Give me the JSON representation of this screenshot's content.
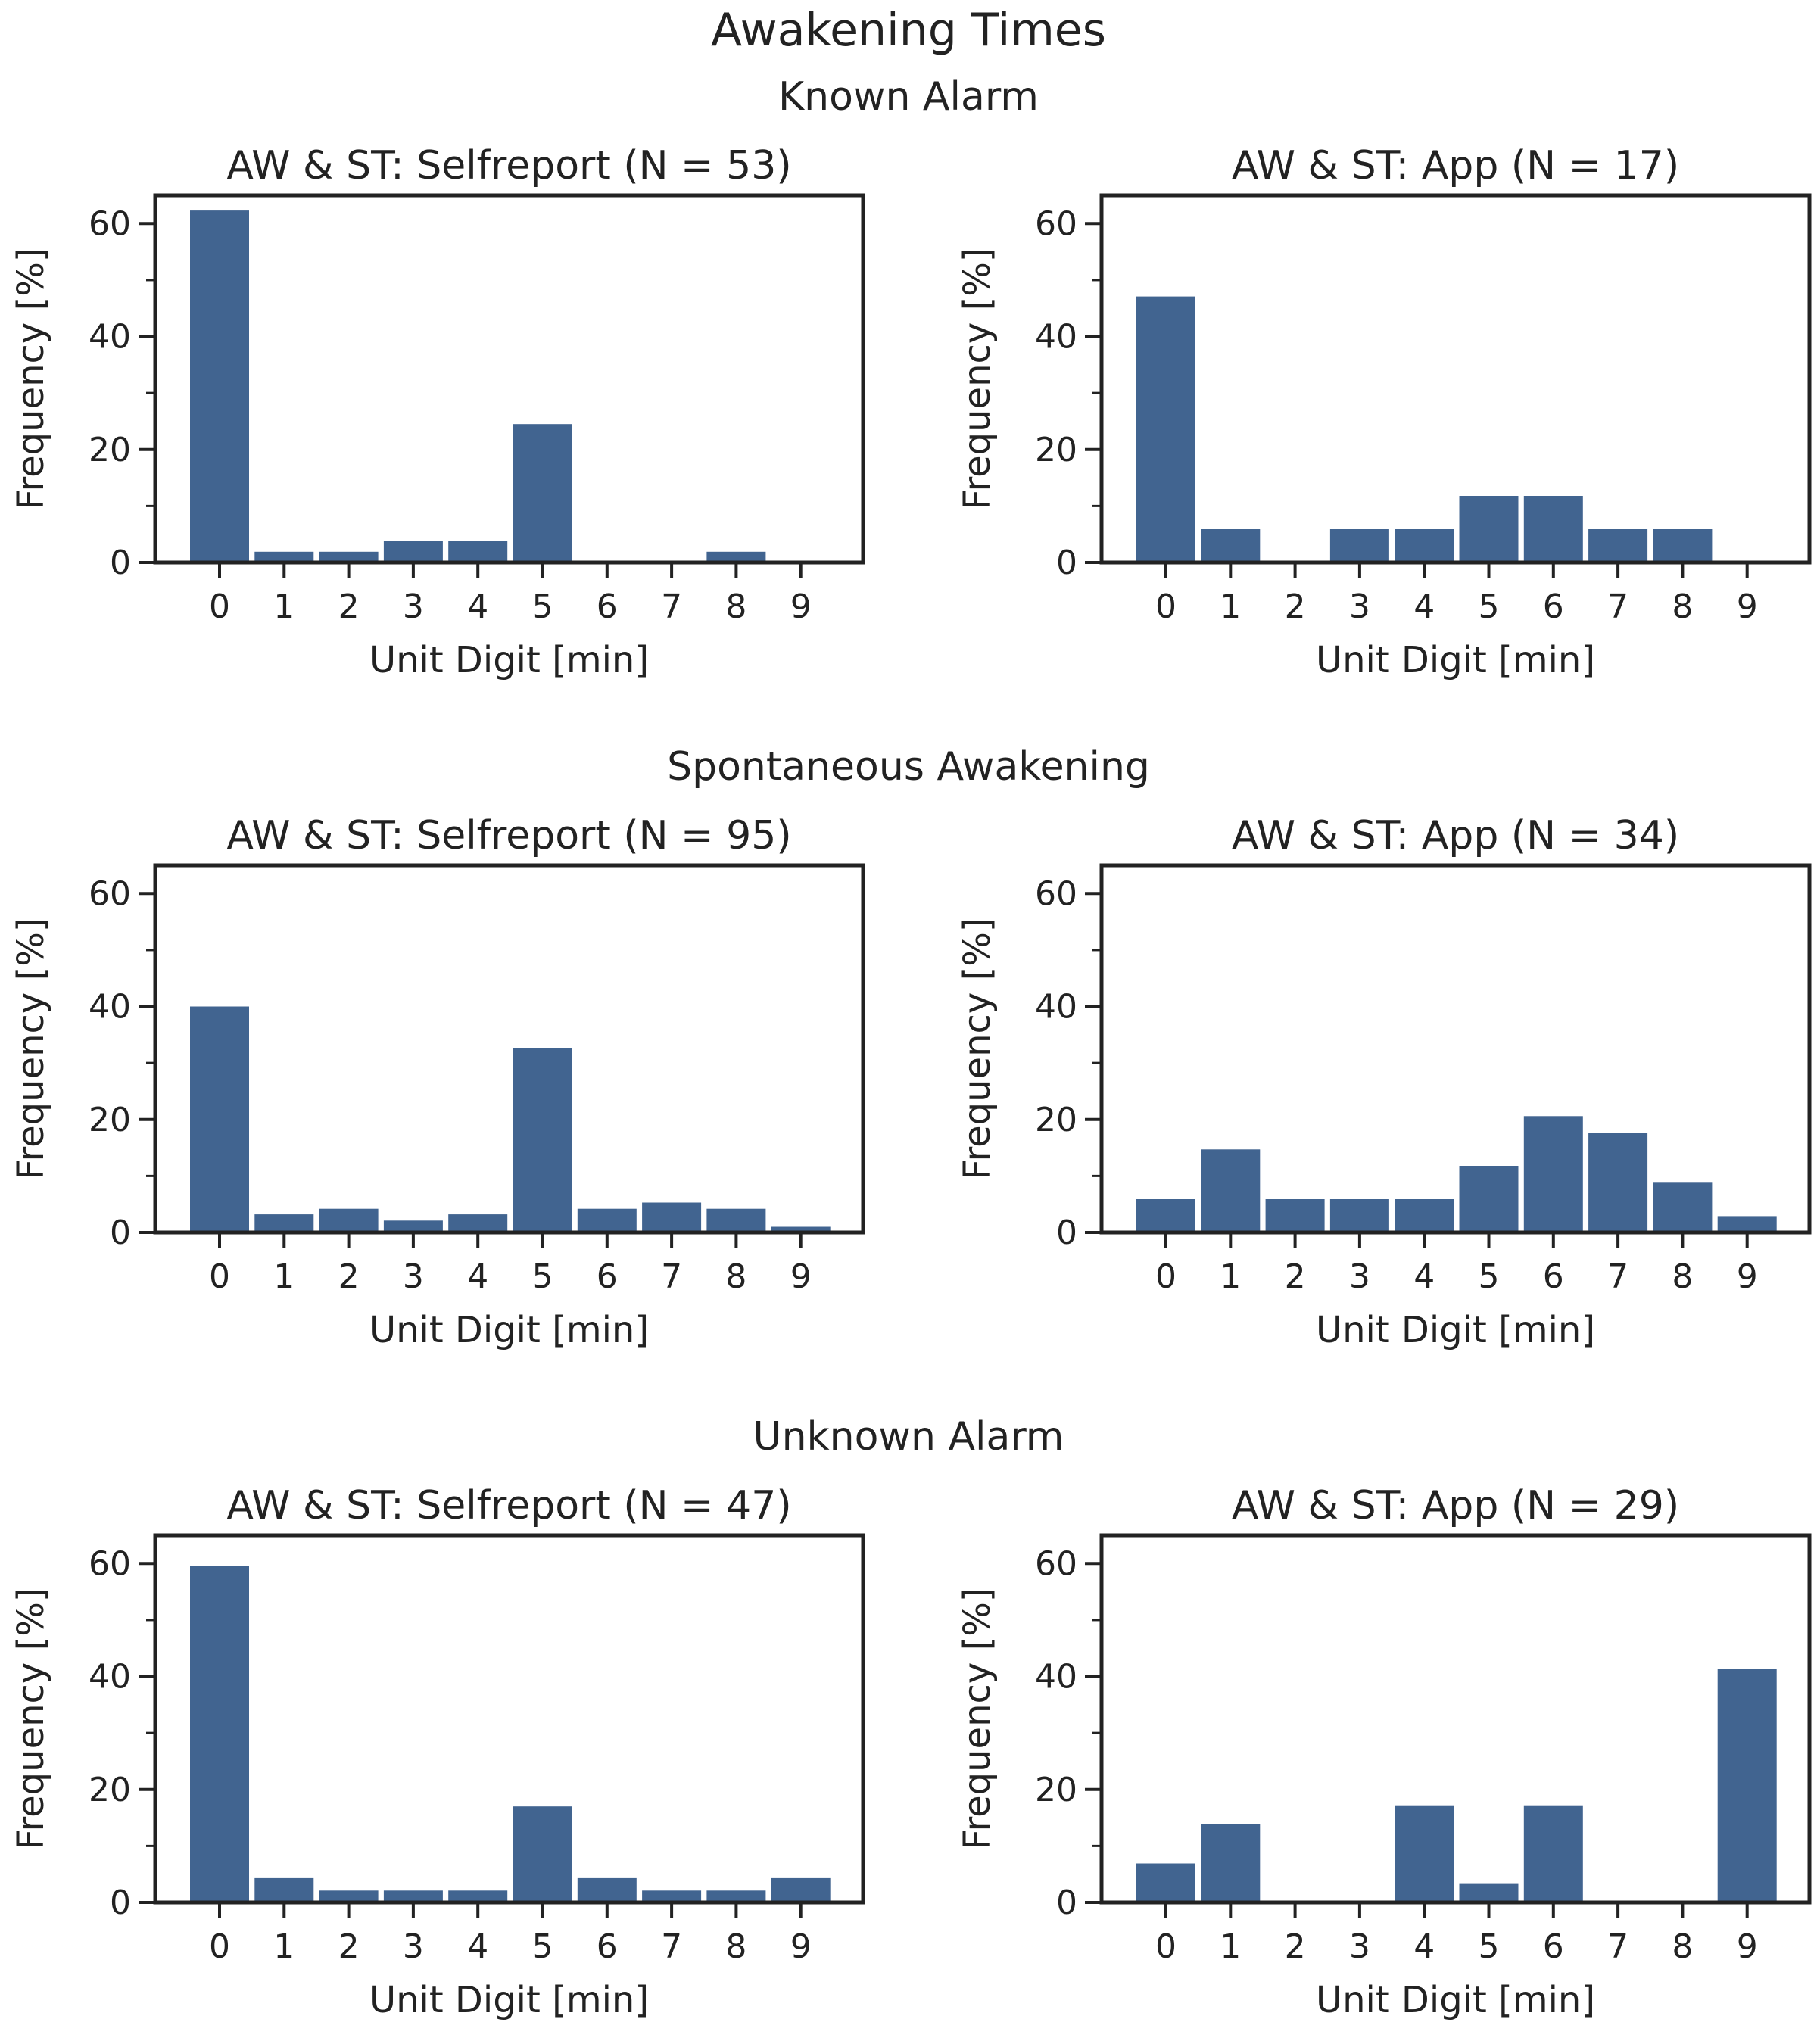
{
  "figure": {
    "title": "Awakening Times",
    "row_titles": [
      "Known Alarm",
      "Spontaneous Awakening",
      "Unknown Alarm"
    ]
  },
  "colors": {
    "bar": "#416490",
    "axis": "#222222",
    "text": "#222222"
  },
  "chart_data": [
    {
      "type": "bar",
      "title": "AW & ST: Selfreport (N = 53)",
      "xlabel": "Unit Digit [min]",
      "ylabel": "Frequency [%]",
      "categories": [
        "0",
        "1",
        "2",
        "3",
        "4",
        "5",
        "6",
        "7",
        "8",
        "9"
      ],
      "values": [
        62.3,
        1.9,
        1.9,
        3.8,
        3.8,
        24.5,
        0,
        0,
        1.9,
        0
      ],
      "ylim": [
        0,
        65
      ],
      "yticks": [
        0,
        20,
        40,
        60
      ],
      "grid": false
    },
    {
      "type": "bar",
      "title": "AW & ST: App (N = 17)",
      "xlabel": "Unit Digit [min]",
      "ylabel": "Frequency [%]",
      "categories": [
        "0",
        "1",
        "2",
        "3",
        "4",
        "5",
        "6",
        "7",
        "8",
        "9"
      ],
      "values": [
        47.1,
        5.9,
        0,
        5.9,
        5.9,
        11.8,
        11.8,
        5.9,
        5.9,
        0
      ],
      "ylim": [
        0,
        65
      ],
      "yticks": [
        0,
        20,
        40,
        60
      ],
      "grid": false
    },
    {
      "type": "bar",
      "title": "AW & ST: Selfreport (N = 95)",
      "xlabel": "Unit Digit [min]",
      "ylabel": "Frequency [%]",
      "categories": [
        "0",
        "1",
        "2",
        "3",
        "4",
        "5",
        "6",
        "7",
        "8",
        "9"
      ],
      "values": [
        40.0,
        3.2,
        4.2,
        2.1,
        3.2,
        32.6,
        4.2,
        5.3,
        4.2,
        1.0
      ],
      "ylim": [
        0,
        65
      ],
      "yticks": [
        0,
        20,
        40,
        60
      ],
      "grid": false
    },
    {
      "type": "bar",
      "title": "AW & ST: App (N = 34)",
      "xlabel": "Unit Digit [min]",
      "ylabel": "Frequency [%]",
      "categories": [
        "0",
        "1",
        "2",
        "3",
        "4",
        "5",
        "6",
        "7",
        "8",
        "9"
      ],
      "values": [
        5.9,
        14.7,
        5.9,
        5.9,
        5.9,
        11.8,
        20.6,
        17.6,
        8.8,
        2.9
      ],
      "ylim": [
        0,
        65
      ],
      "yticks": [
        0,
        20,
        40,
        60
      ],
      "grid": false
    },
    {
      "type": "bar",
      "title": "AW & ST: Selfreport (N = 47)",
      "xlabel": "Unit Digit [min]",
      "ylabel": "Frequency [%]",
      "categories": [
        "0",
        "1",
        "2",
        "3",
        "4",
        "5",
        "6",
        "7",
        "8",
        "9"
      ],
      "values": [
        59.6,
        4.3,
        2.1,
        2.1,
        2.1,
        17.0,
        4.3,
        2.1,
        2.1,
        4.3
      ],
      "ylim": [
        0,
        65
      ],
      "yticks": [
        0,
        20,
        40,
        60
      ],
      "grid": false
    },
    {
      "type": "bar",
      "title": "AW & ST: App (N = 29)",
      "xlabel": "Unit Digit [min]",
      "ylabel": "Frequency [%]",
      "categories": [
        "0",
        "1",
        "2",
        "3",
        "4",
        "5",
        "6",
        "7",
        "8",
        "9"
      ],
      "values": [
        6.9,
        13.8,
        0,
        0,
        17.2,
        3.4,
        17.2,
        0,
        0,
        41.4
      ],
      "ylim": [
        0,
        65
      ],
      "yticks": [
        0,
        20,
        40,
        60
      ],
      "grid": false
    }
  ]
}
